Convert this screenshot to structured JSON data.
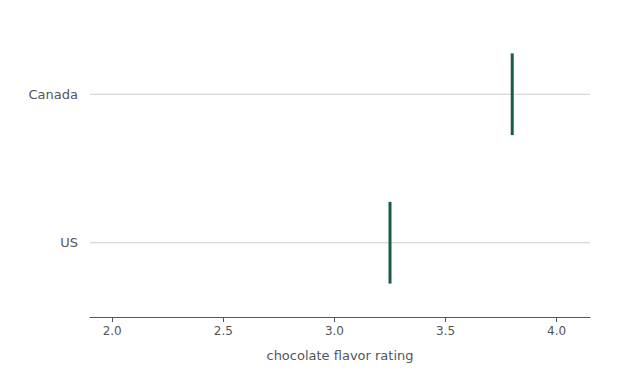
{
  "chart_data": {
    "type": "scatter",
    "categories": [
      "Canada",
      "US"
    ],
    "values": [
      3.8,
      3.25
    ],
    "color": "#1a5c40",
    "marker": "vline",
    "xlabel": "chocolate flavor rating",
    "xlim": [
      1.9,
      4.15
    ],
    "xticks": [
      {
        "value": 2.0,
        "label": "2.0"
      },
      2.5,
      {
        "value": 3.0,
        "label": "3.0"
      },
      3.5,
      {
        "value": 4.0,
        "label": "4.0"
      }
    ],
    "grid": true
  }
}
